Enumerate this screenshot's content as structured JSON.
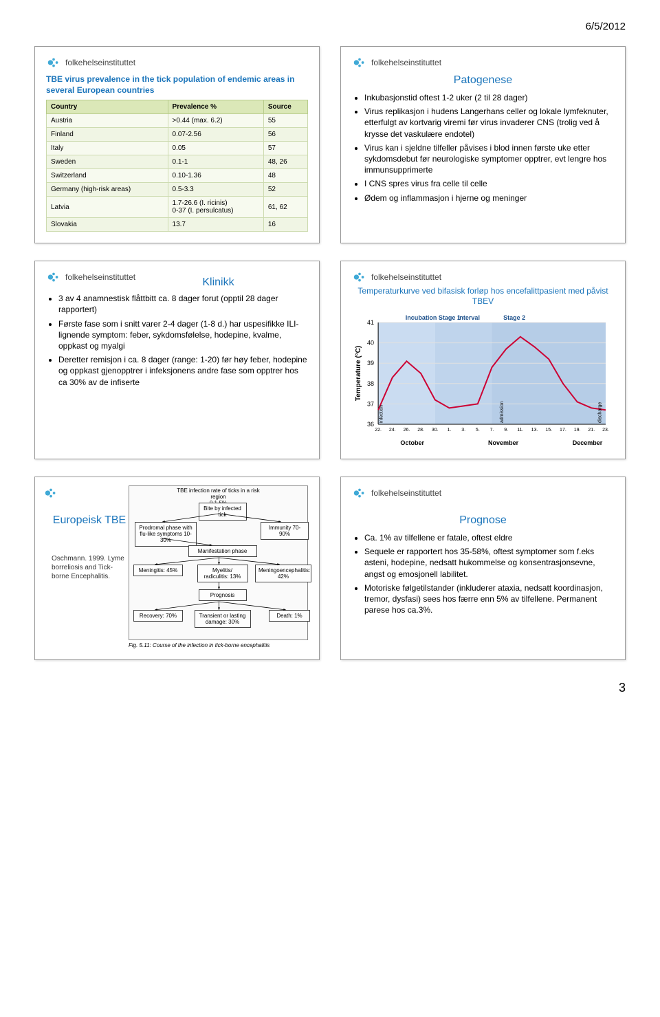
{
  "page": {
    "date": "6/5/2012",
    "number": "3"
  },
  "logo_text": "folkehelseinstituttet",
  "slide1": {
    "title": "TBE virus prevalence in the tick population of endemic areas in several European countries",
    "columns": [
      "Country",
      "Prevalence %",
      "Source"
    ],
    "rows": [
      [
        "Austria",
        ">0.44 (max. 6.2)",
        "55"
      ],
      [
        "Finland",
        "0.07-2.56",
        "56"
      ],
      [
        "Italy",
        "0.05",
        "57"
      ],
      [
        "Sweden",
        "0.1-1",
        "48, 26"
      ],
      [
        "Switzerland",
        "0.10-1.36",
        "48"
      ],
      [
        "Germany (high-risk areas)",
        "0.5-3.3",
        "52"
      ],
      [
        "Latvia",
        "1.7-26.6 (I. ricinis)\n0-37 (I. persulcatus)",
        "61, 62"
      ],
      [
        "Slovakia",
        "13.7",
        "16"
      ]
    ]
  },
  "slide2": {
    "title": "Patogenese",
    "bullets": [
      "Inkubasjonstid oftest 1-2 uker (2 til 28 dager)",
      "Virus replikasjon i hudens Langerhans celler og lokale lymfeknuter, etterfulgt av kortvarig viremi før virus invaderer CNS (trolig ved å krysse det vaskulære endotel)",
      "Virus kan i sjeldne tilfeller påvises i blod innen første uke etter sykdomsdebut før neurologiske symptomer opptrer, evt lengre hos immunsupprimerte",
      "I CNS spres virus fra celle til celle",
      "Ødem og inflammasjon i hjerne og meninger"
    ]
  },
  "slide3": {
    "title": "Klinikk",
    "bullets": [
      "3 av 4 anamnestisk flåttbitt ca. 8 dager forut (opptil 28 dager rapportert)",
      "Første fase som i snitt varer 2-4 dager (1-8 d.) har uspesifikke ILI-lignende symptom: feber, sykdomsfølelse, hodepine, kvalme, oppkast og myalgi",
      "Deretter remisjon i ca. 8 dager (range: 1-20) før høy feber, hodepine og oppkast gjenopptrer i infeksjonens andre fase som opptrer hos ca 30% av de infiserte"
    ]
  },
  "slide4": {
    "title": "Temperaturkurve ved bifasisk forløp hos encefalittpasient med påvist TBEV",
    "chart": {
      "type": "line",
      "ylabel": "Temperature (°C)",
      "ylim": [
        36,
        41
      ],
      "yticks": [
        36,
        37,
        38,
        39,
        40,
        41
      ],
      "x_labels_area1": "Incubation Stage 1",
      "x_labels_area2": "Interval",
      "x_labels_area3": "Stage 2",
      "x_months": [
        "October",
        "November",
        "December"
      ],
      "x_ticks": [
        "22.",
        "24.",
        "26.",
        "28.",
        "30.",
        "1.",
        "3.",
        "5.",
        "7.",
        "9.",
        "11.",
        "13.",
        "15.",
        "17.",
        "19.",
        "21.",
        "23."
      ],
      "annotations": [
        "infection",
        "admission",
        "discharge"
      ],
      "line_color": "#cc0033",
      "stage_fill_colors": [
        "#9fc0e6",
        "#8ab0dc",
        "#7aa4d4"
      ],
      "background": "#ffffff",
      "grid_color": "#e0e0e0",
      "values": [
        36.7,
        38.3,
        39.1,
        38.5,
        37.2,
        36.8,
        36.9,
        37.0,
        38.8,
        39.7,
        40.3,
        39.8,
        39.2,
        38.0,
        37.1,
        36.8,
        36.7
      ]
    }
  },
  "slide5": {
    "title": "Europeisk TBE",
    "citation": "Oschmann. 1999. Lyme borreliosis and Tick-borne Encephalitis.",
    "flow": {
      "top_label": "TBE infection rate of ticks in a risk region\n0.1-5%",
      "nodes": {
        "bite": "Bite by infected tick",
        "prodromal": "Prodromal phase with flu-like symptoms 10-30%",
        "immunity": "Immunity 70-90%",
        "manifestation": "Manifestation phase",
        "meningitis": "Meningitis: 45%",
        "myelitis": "Myelitis/ radiculitis: 13%",
        "meningoenc": "Meningoencephalitis: 42%",
        "prognosis": "Prognosis",
        "recovery": "Recovery: 70%",
        "damage": "Transient or lasting damage: 30%",
        "death": "Death: 1%"
      },
      "caption": "Fig. 5.11: Course of the infection in tick-borne encephalitis"
    }
  },
  "slide6": {
    "title": "Prognose",
    "bullets": [
      "Ca. 1% av tilfellene er fatale, oftest eldre",
      "Sequele er rapportert hos 35-58%, oftest symptomer som f.eks asteni, hodepine, nedsatt hukommelse og konsentrasjonsevne, angst og emosjonell labilitet.",
      "Motoriske følgetilstander (inkluderer ataxia, nedsatt koordinasjon, tremor, dysfasi) sees hos færre enn 5% av tilfellene. Permanent parese hos ca.3%."
    ]
  }
}
